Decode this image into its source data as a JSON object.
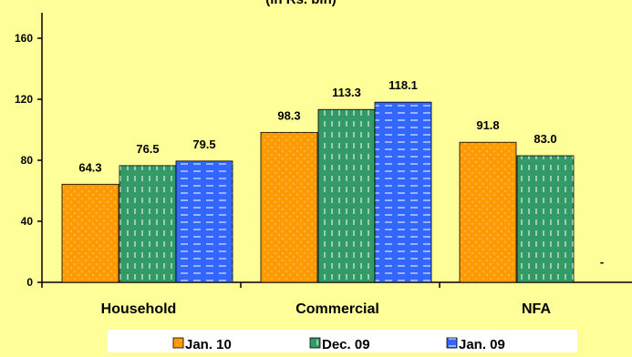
{
  "chart_data": {
    "type": "bar",
    "title": "(in Rs. bln)",
    "categories": [
      "Household",
      "Commercial",
      "NFA"
    ],
    "series": [
      {
        "name": "Jan. 10",
        "values": [
          64.3,
          98.3,
          91.8
        ],
        "labels": [
          "64.3",
          "98.3",
          "91.8"
        ],
        "color": "#FF9900",
        "pattern": "dots"
      },
      {
        "name": "Dec. 09",
        "values": [
          76.5,
          113.3,
          83.0
        ],
        "labels": [
          "76.5",
          "113.3",
          "83.0"
        ],
        "color": "#339966",
        "pattern": "vertical-dashes"
      },
      {
        "name": "Jan. 09",
        "values": [
          79.5,
          118.1,
          null
        ],
        "labels": [
          "79.5",
          "118.1",
          "-"
        ],
        "color": "#3366FF",
        "pattern": "horizontal-dashes"
      }
    ],
    "yticks": [
      "0",
      "40",
      "80",
      "120",
      "160"
    ],
    "ylim": [
      0,
      175
    ],
    "grid": false,
    "legend_position": "bottom",
    "background": "#FFFF99"
  }
}
